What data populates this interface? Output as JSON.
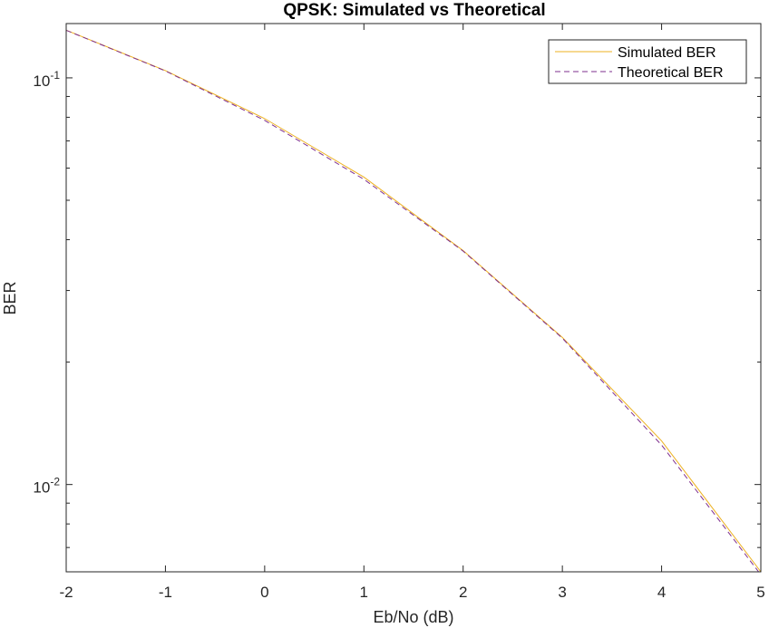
{
  "chart_data": {
    "type": "line",
    "title": "QPSK: Simulated vs Theoretical",
    "xlabel": "Eb/No (dB)",
    "ylabel": "BER",
    "yscale": "log",
    "xlim": [
      -2,
      5
    ],
    "ylim": [
      0.0061,
      0.136
    ],
    "x_ticks": [
      -2,
      -1,
      0,
      1,
      2,
      3,
      4,
      5
    ],
    "x_tick_labels": [
      "-2",
      "-1",
      "0",
      "1",
      "2",
      "3",
      "4",
      "5"
    ],
    "y_ticks": [
      0.1,
      0.01
    ],
    "y_tick_labels": [
      {
        "base": "10",
        "exp": "-1"
      },
      {
        "base": "10",
        "exp": "-2"
      }
    ],
    "grid": false,
    "legend_position": "top-right",
    "x": [
      -2,
      -1,
      0,
      1,
      2,
      3,
      4,
      5
    ],
    "series": [
      {
        "name": "Simulated BER",
        "color": "#EDB120",
        "style": "solid",
        "values": [
          0.131,
          0.1042,
          0.0794,
          0.057,
          0.0376,
          0.023,
          0.0128,
          0.0061
        ]
      },
      {
        "name": "Theoretical BER",
        "color": "#7E2F8E",
        "style": "dashed",
        "values": [
          0.1309,
          0.104,
          0.0786,
          0.0563,
          0.0375,
          0.0229,
          0.0125,
          0.006
        ]
      }
    ]
  }
}
